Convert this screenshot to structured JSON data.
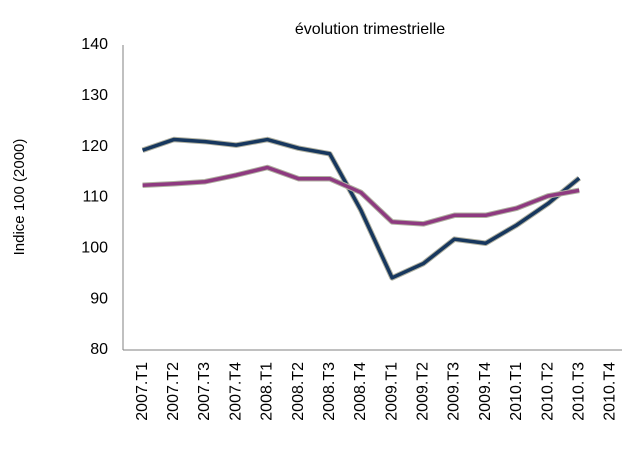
{
  "chart_data": {
    "type": "line",
    "title": "évolution trimestrielle",
    "y_label": "Indice 100 (2000)",
    "categories": [
      "2007.T1",
      "2007.T2",
      "2007.T3",
      "2007.T4",
      "2008.T1",
      "2008.T2",
      "2008.T3",
      "2008.T4",
      "2009.T1",
      "2009.T2",
      "2009.T3",
      "2009.T4",
      "2010.T1",
      "2010.T2",
      "2010.T3",
      "2010.T4"
    ],
    "series": [
      {
        "color": "#17375e",
        "values": [
          119.3,
          121.4,
          121.0,
          120.3,
          121.4,
          119.7,
          118.6,
          107.5,
          94.2,
          97.0,
          101.8,
          101.0,
          104.6,
          108.8,
          113.8,
          null
        ]
      },
      {
        "color": "#8e3a80",
        "values": [
          112.4,
          112.7,
          113.1,
          114.4,
          115.9,
          113.7,
          113.7,
          111.0,
          105.2,
          104.8,
          106.5,
          106.5,
          107.9,
          110.3,
          111.4,
          null
        ]
      }
    ],
    "ylim": [
      80,
      140
    ],
    "yticks": [
      80,
      90,
      100,
      110,
      120,
      130,
      140
    ],
    "grid": false
  }
}
